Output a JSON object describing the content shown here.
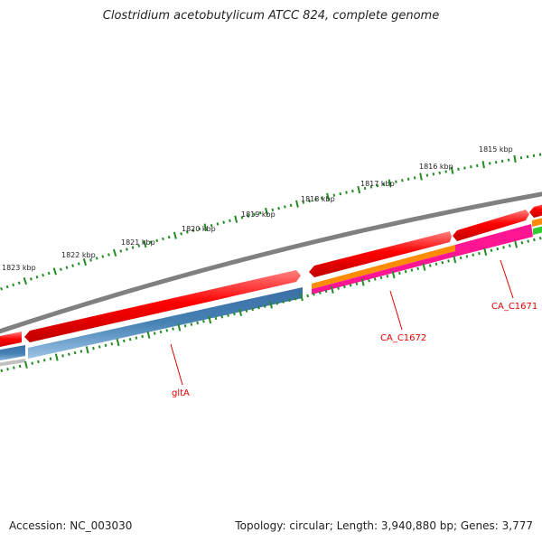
{
  "title": "Clostridium acetobutylicum ATCC 824, complete genome",
  "footer": {
    "accession": "Accession: NC_003030",
    "summary": "Topology: circular; Length: 3,940,880 bp; Genes: 3,777"
  },
  "position_labels": [
    "1823 kbp",
    "1822 kbp",
    "1821 kbp",
    "1820 kbp",
    "1819 kbp",
    "1818 kbp",
    "1817 kbp",
    "1816 kbp",
    "1815 kbp"
  ],
  "gene_labels": [
    "gltA",
    "CA_C1672",
    "CA_C1671"
  ],
  "colors": {
    "backbone": "#808080",
    "cds": "#ff0000",
    "gltA": "#4682b4",
    "orange": "#ff8c00",
    "pink": "#ff1493",
    "green": "#32cd32",
    "tick": "#228b22",
    "label": "#e00000"
  }
}
